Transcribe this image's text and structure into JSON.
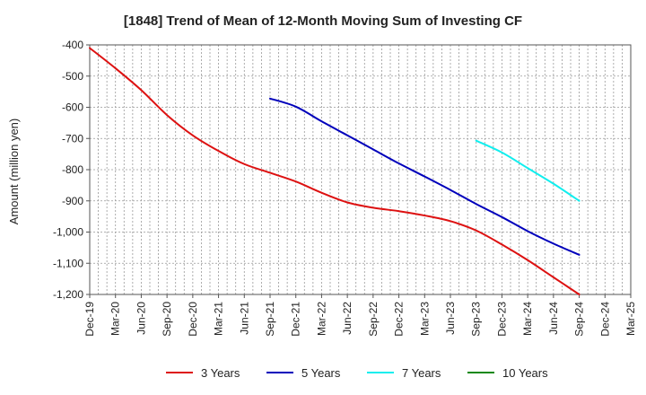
{
  "chart_data": {
    "type": "line",
    "title": "[1848]  Trend of Mean of 12-Month Moving Sum of Investing CF",
    "xlabel": "",
    "ylabel": "Amount (million yen)",
    "ylim": [
      -1200,
      -400
    ],
    "yticks": [
      -400,
      -500,
      -600,
      -700,
      -800,
      -900,
      -1000,
      -1100,
      -1200
    ],
    "ytick_labels": [
      "-400",
      "-500",
      "-600",
      "-700",
      "-800",
      "-900",
      "-1,000",
      "-1,100",
      "-1,200"
    ],
    "x_categories": [
      "Dec-19",
      "Mar-20",
      "Jun-20",
      "Sep-20",
      "Dec-20",
      "Mar-21",
      "Jun-21",
      "Sep-21",
      "Dec-21",
      "Mar-22",
      "Jun-22",
      "Sep-22",
      "Dec-22",
      "Mar-23",
      "Jun-23",
      "Sep-23",
      "Dec-23",
      "Mar-24",
      "Jun-24",
      "Sep-24",
      "Dec-24",
      "Mar-25"
    ],
    "grid": true,
    "legend_position": "bottom",
    "series": [
      {
        "name": "3 Years",
        "color": "#dd1111",
        "start_index": 0,
        "values": [
          -410,
          -475,
          -545,
          -625,
          -690,
          -740,
          -782,
          -810,
          -838,
          -874,
          -905,
          -922,
          -933,
          -947,
          -965,
          -995,
          -1040,
          -1090,
          -1145,
          -1200
        ]
      },
      {
        "name": "5 Years",
        "color": "#0000bb",
        "start_index": 7,
        "values": [
          -572,
          -598,
          -645,
          -690,
          -735,
          -780,
          -822,
          -865,
          -910,
          -952,
          -997,
          -1037,
          -1073
        ]
      },
      {
        "name": "7 Years",
        "color": "#11eeee",
        "start_index": 15,
        "values": [
          -707,
          -745,
          -795,
          -845,
          -900
        ]
      },
      {
        "name": "10 Years",
        "color": "#118811",
        "start_index": 0,
        "values": []
      }
    ]
  }
}
